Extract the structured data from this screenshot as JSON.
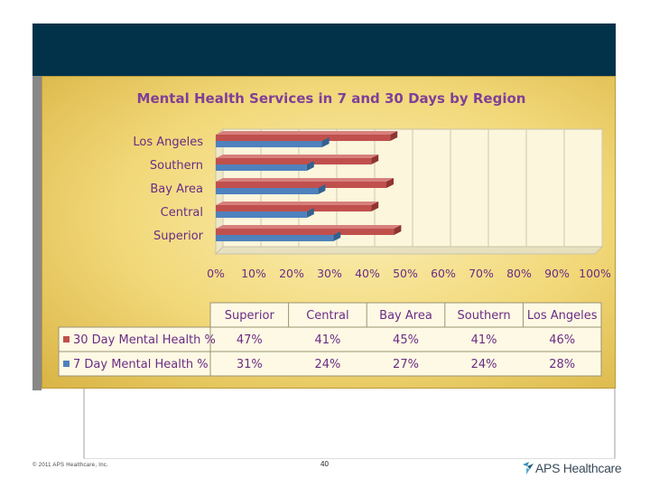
{
  "footer": {
    "copyright": "© 2011 APS Healthcare, Inc.",
    "page_number": "40",
    "logo_text": "APS Healthcare"
  },
  "colors": {
    "header": "#02324a",
    "series_30": "#c0504d",
    "series_7": "#4f81bd",
    "title": "#7f3f98"
  },
  "chart_data": {
    "type": "bar",
    "orientation": "horizontal",
    "title": "Mental Health Services in 7 and 30 Days by Region",
    "categories": [
      "Superior",
      "Central",
      "Bay Area",
      "Southern",
      "Los Angeles"
    ],
    "series": [
      {
        "name": "30 Day Mental Health %",
        "values": [
          47,
          41,
          45,
          41,
          46
        ],
        "labels": [
          "47%",
          "41%",
          "45%",
          "41%",
          "46%"
        ]
      },
      {
        "name": "7 Day Mental Health %",
        "values": [
          31,
          24,
          27,
          24,
          28
        ],
        "labels": [
          "31%",
          "24%",
          "27%",
          "24%",
          "28%"
        ]
      }
    ],
    "xlim": [
      0,
      100
    ],
    "x_ticks": [
      "0%",
      "10%",
      "20%",
      "30%",
      "40%",
      "50%",
      "60%",
      "70%",
      "80%",
      "90%",
      "100%"
    ],
    "grid": true,
    "legend": "data-table"
  }
}
